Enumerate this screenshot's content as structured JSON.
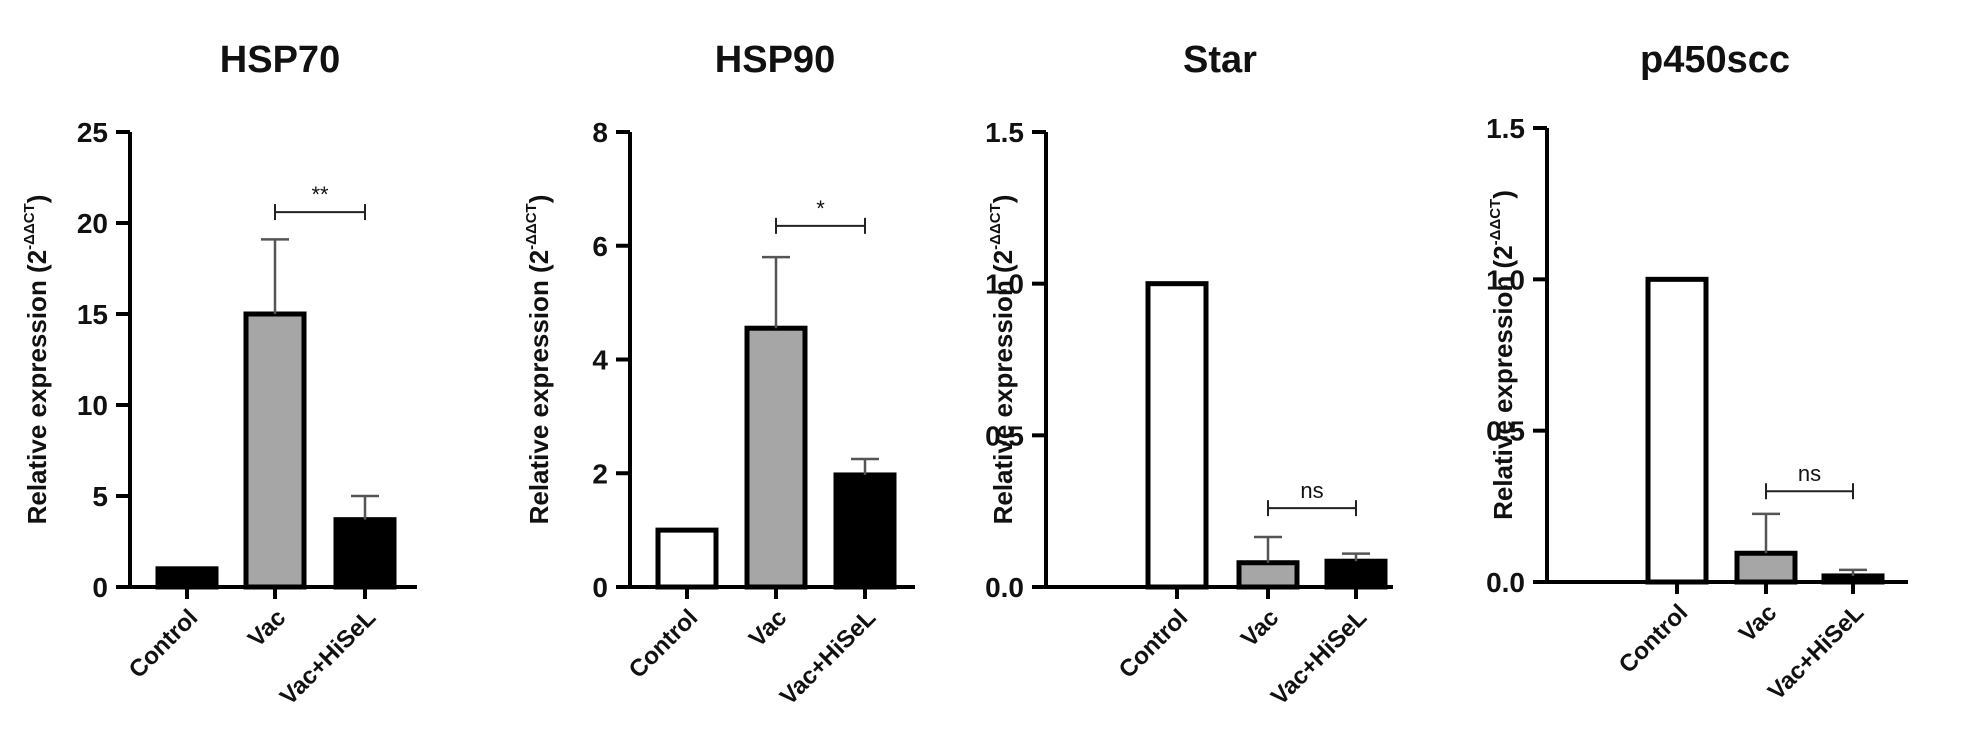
{
  "chart_data": [
    {
      "type": "bar",
      "title": "HSP70",
      "ylabel": "Relative expression (2",
      "ylabel_sup": "-ΔΔCT",
      "ylabel_close": ")",
      "categories": [
        "Control",
        "Vac",
        "Vac+HiSeL"
      ],
      "values": [
        1,
        15,
        3.7
      ],
      "error_upper": [
        1,
        19.1,
        5.0
      ],
      "bar_colors": [
        "#000000",
        "#a6a6a6",
        "#000000"
      ],
      "ylim": [
        0,
        25
      ],
      "yticks": [
        "0",
        "5",
        "10",
        "15",
        "20",
        "25"
      ],
      "ytick_values": [
        0,
        5,
        10,
        15,
        20,
        25
      ],
      "significance": {
        "from": 1,
        "to": 2,
        "label": "**",
        "y": 20.6
      }
    },
    {
      "type": "bar",
      "title": "HSP90",
      "ylabel": "Relative expression (2",
      "ylabel_sup": "-ΔΔCT",
      "ylabel_close": ")",
      "categories": [
        "Control",
        "Vac",
        "Vac+HiSeL"
      ],
      "values": [
        1,
        4.55,
        1.97
      ],
      "error_upper": [
        1,
        5.8,
        2.25
      ],
      "bar_colors": [
        "#ffffff",
        "#a6a6a6",
        "#000000"
      ],
      "ylim": [
        0,
        8
      ],
      "yticks": [
        "0",
        "2",
        "4",
        "6",
        "8"
      ],
      "ytick_values": [
        0,
        2,
        4,
        6,
        8
      ],
      "significance": {
        "from": 1,
        "to": 2,
        "label": "*",
        "y": 6.35
      }
    },
    {
      "type": "bar",
      "title": "Star",
      "ylabel": "Relative expression (2",
      "ylabel_sup": "-ΔΔCT",
      "ylabel_close": ")",
      "categories": [
        "Control",
        "Vac",
        "Vac+HiSeL"
      ],
      "values": [
        1.0,
        0.08,
        0.085
      ],
      "error_upper": [
        1.0,
        0.165,
        0.11
      ],
      "bar_colors": [
        "#ffffff",
        "#a6a6a6",
        "#000000"
      ],
      "ylim": [
        0,
        1.5
      ],
      "yticks": [
        "0.0",
        "0.5",
        "1.0",
        "1.5"
      ],
      "ytick_values": [
        0,
        0.5,
        1.0,
        1.5
      ],
      "significance": {
        "from": 1,
        "to": 2,
        "label": "ns",
        "y": 0.26
      }
    },
    {
      "type": "bar",
      "title": "p450scc",
      "ylabel": "Relative expression (2",
      "ylabel_sup": "-ΔΔCT",
      "ylabel_close": ")",
      "categories": [
        "Control",
        "Vac",
        "Vac+HiSeL"
      ],
      "values": [
        1.0,
        0.095,
        0.02
      ],
      "error_upper": [
        1.0,
        0.225,
        0.04
      ],
      "bar_colors": [
        "#ffffff",
        "#a6a6a6",
        "#000000"
      ],
      "ylim": [
        0,
        1.5
      ],
      "yticks": [
        "0.0",
        "0.5",
        "1.0",
        "1.5"
      ],
      "ytick_values": [
        0,
        0.5,
        1.0,
        1.5
      ],
      "significance": {
        "from": 1,
        "to": 2,
        "label": "ns",
        "y": 0.3
      }
    }
  ]
}
